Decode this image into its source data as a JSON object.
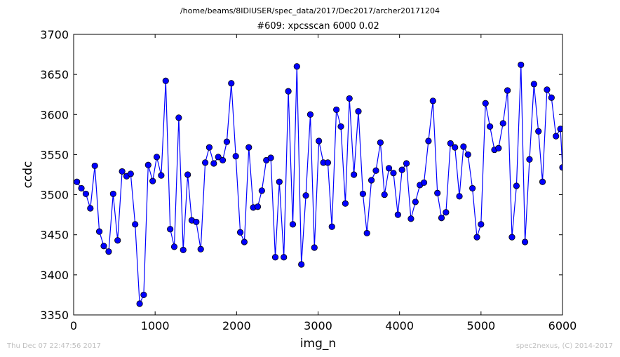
{
  "suptitle": "/home/beams/8IDIUSER/spec_data/2017/Dec2017/archer20171204",
  "footer": {
    "left": "Thu Dec 07 22:47:56 2017",
    "right": "spec2nexus, (C) 2014-2017"
  },
  "colors": {
    "line": "#0000ff",
    "marker_fill": "#0000ff",
    "marker_edge": "#000000"
  },
  "chart_data": {
    "type": "line",
    "title": "#609: xpcsscan 6000 0.02",
    "xlabel": "img_n",
    "ylabel": "ccdc",
    "xlim": [
      0,
      6000
    ],
    "ylim": [
      3350,
      3700
    ],
    "xticks": [
      0,
      1000,
      2000,
      3000,
      4000,
      5000,
      6000
    ],
    "yticks": [
      3350,
      3400,
      3450,
      3500,
      3550,
      3600,
      3650,
      3700
    ],
    "grid": false,
    "series": [
      {
        "x": [
          40,
          95,
          150,
          205,
          260,
          315,
          370,
          430,
          485,
          540,
          595,
          650,
          700,
          755,
          810,
          860,
          915,
          970,
          1020,
          1075,
          1130,
          1185,
          1235,
          1290,
          1345,
          1400,
          1450,
          1505,
          1560,
          1615,
          1665,
          1720,
          1775,
          1830,
          1880,
          1935,
          1990,
          2045,
          2095,
          2150,
          2205,
          2260,
          2310,
          2365,
          2420,
          2475,
          2525,
          2580,
          2635,
          2690,
          2740,
          2795,
          2850,
          2905,
          2955,
          3010,
          3065,
          3120,
          3170,
          3225,
          3280,
          3335,
          3385,
          3440,
          3495,
          3550,
          3600,
          3655,
          3710,
          3765,
          3815,
          3870,
          3925,
          3980,
          4030,
          4085,
          4140,
          4195,
          4250,
          4300,
          4355,
          4410,
          4465,
          4515,
          4570,
          4625,
          4680,
          4735,
          4785,
          4840,
          4895,
          4950,
          5000,
          5055,
          5110,
          5165,
          5215,
          5270,
          5325,
          5380,
          5435,
          5490,
          5540,
          5595,
          5650,
          5705,
          5755,
          5810,
          5865,
          5920,
          5975,
          6000
        ],
        "y": [
          3516,
          3508,
          3501,
          3483,
          3536,
          3454,
          3436,
          3429,
          3501,
          3443,
          3529,
          3523,
          3526,
          3463,
          3364,
          3375,
          3537,
          3517,
          3547,
          3524,
          3642,
          3457,
          3435,
          3596,
          3431,
          3525,
          3468,
          3466,
          3432,
          3540,
          3559,
          3539,
          3547,
          3543,
          3566,
          3639,
          3548,
          3453,
          3441,
          3559,
          3484,
          3485,
          3505,
          3543,
          3546,
          3422,
          3516,
          3422,
          3629,
          3463,
          3660,
          3413,
          3499,
          3600,
          3434,
          3567,
          3540,
          3540,
          3460,
          3606,
          3585,
          3489,
          3620,
          3525,
          3604,
          3501,
          3452,
          3518,
          3530,
          3565,
          3500,
          3533,
          3527,
          3475,
          3531,
          3539,
          3470,
          3491,
          3512,
          3515,
          3567,
          3617,
          3502,
          3471,
          3478,
          3564,
          3559,
          3498,
          3560,
          3550,
          3508,
          3447,
          3463,
          3614,
          3585,
          3556,
          3558,
          3589,
          3630,
          3447,
          3511,
          3662,
          3441,
          3544,
          3638,
          3579,
          3516,
          3631,
          3621,
          3573,
          3582,
          3534
        ]
      }
    ]
  }
}
